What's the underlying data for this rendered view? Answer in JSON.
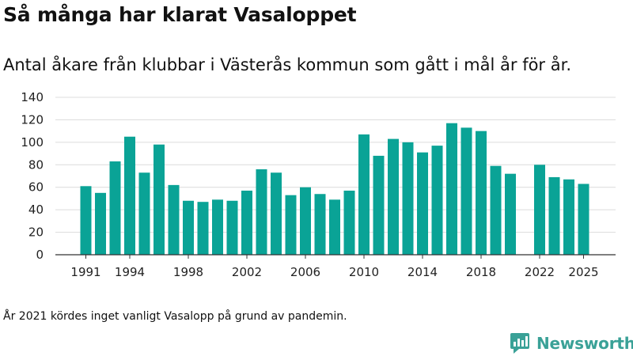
{
  "title": "Så många har klarat Vasaloppet",
  "subtitle": "Antal åkare från klubbar i Västerås kommun som gått i mål år för år.",
  "footnote": "År 2021 kördes inget vanligt Vasalopp på grund av pandemin.",
  "brand": {
    "name": "Newsworthy",
    "color": "#3aa197",
    "icon": "newsworthy-logo-icon"
  },
  "colors": {
    "bar": "#0aa396",
    "grid": "#dcdcdc",
    "axis": "#333333"
  },
  "chart_data": {
    "type": "bar",
    "title": "Så många har klarat Vasaloppet",
    "xlabel": "",
    "ylabel": "",
    "ylim": [
      0,
      140
    ],
    "yticks": [
      0,
      20,
      40,
      60,
      80,
      100,
      120,
      140
    ],
    "xticks": [
      1991,
      1994,
      1998,
      2002,
      2006,
      2010,
      2014,
      2018,
      2022,
      2025
    ],
    "grid": true,
    "categories": [
      1991,
      1992,
      1993,
      1994,
      1995,
      1996,
      1997,
      1998,
      1999,
      2000,
      2001,
      2002,
      2003,
      2004,
      2005,
      2006,
      2007,
      2008,
      2009,
      2010,
      2011,
      2012,
      2013,
      2014,
      2015,
      2016,
      2017,
      2018,
      2019,
      2020,
      2021,
      2022,
      2023,
      2024,
      2025
    ],
    "values": [
      61,
      55,
      83,
      105,
      73,
      98,
      62,
      48,
      47,
      49,
      48,
      57,
      76,
      73,
      53,
      60,
      54,
      49,
      57,
      107,
      88,
      103,
      100,
      91,
      97,
      117,
      113,
      110,
      79,
      72,
      null,
      80,
      69,
      67,
      63
    ]
  }
}
